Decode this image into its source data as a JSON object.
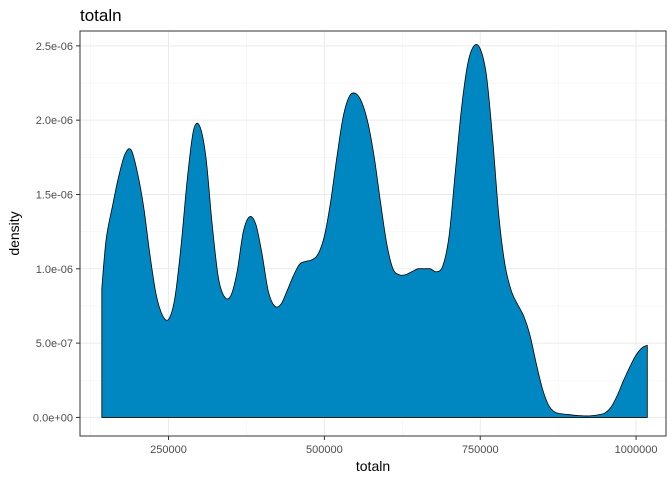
{
  "chart_data": {
    "type": "area",
    "title": "totaln",
    "xlabel": "totaln",
    "ylabel": "density",
    "xlim": [
      108000,
      1048000
    ],
    "ylim": [
      -1.25e-07,
      2.6e-06
    ],
    "x_ticks": [
      250000,
      500000,
      750000,
      1000000
    ],
    "x_tick_labels": [
      "250000",
      "500000",
      "750000",
      "1000000"
    ],
    "y_ticks": [
      0,
      5e-07,
      1e-06,
      1.5e-06,
      2e-06,
      2.5e-06
    ],
    "y_tick_labels": [
      "0.0e+00",
      "5.0e-07",
      "1.0e-06",
      "1.5e-06",
      "2.0e-06",
      "2.5e-06"
    ],
    "grid": true,
    "fill_color": "#0087C1",
    "x": [
      143000,
      150000,
      160000,
      170000,
      180000,
      190000,
      200000,
      210000,
      220000,
      230000,
      240000,
      250000,
      260000,
      270000,
      280000,
      290000,
      300000,
      310000,
      320000,
      330000,
      340000,
      350000,
      360000,
      370000,
      380000,
      390000,
      400000,
      410000,
      420000,
      430000,
      440000,
      450000,
      460000,
      470000,
      480000,
      490000,
      500000,
      510000,
      520000,
      530000,
      540000,
      550000,
      560000,
      570000,
      580000,
      590000,
      600000,
      610000,
      620000,
      630000,
      640000,
      650000,
      660000,
      670000,
      680000,
      690000,
      700000,
      710000,
      720000,
      730000,
      740000,
      750000,
      760000,
      770000,
      780000,
      790000,
      800000,
      810000,
      820000,
      830000,
      840000,
      850000,
      860000,
      870000,
      880000,
      890000,
      900000,
      910000,
      920000,
      930000,
      940000,
      950000,
      960000,
      970000,
      980000,
      990000,
      1000000,
      1010000,
      1018000
    ],
    "density": [
      8.7e-07,
      1.2e-06,
      1.42e-06,
      1.62e-06,
      1.77e-06,
      1.8e-06,
      1.65e-06,
      1.42e-06,
      1.1e-06,
      8.3e-07,
      6.9e-07,
      6.6e-07,
      8e-07,
      1.15e-06,
      1.6e-06,
      1.93e-06,
      1.96e-06,
      1.75e-06,
      1.3e-06,
      9.4e-07,
      8.1e-07,
      8.2e-07,
      9.8e-07,
      1.25e-06,
      1.35e-06,
      1.3e-06,
      1.1e-06,
      8.5e-07,
      7.5e-07,
      7.6e-07,
      8.5e-07,
      9.5e-07,
      1.03e-06,
      1.05e-06,
      1.06e-06,
      1.1e-06,
      1.22e-06,
      1.45e-06,
      1.75e-06,
      2.02e-06,
      2.16e-06,
      2.18e-06,
      2.12e-06,
      1.98e-06,
      1.75e-06,
      1.45e-06,
      1.17e-06,
      1e-06,
      9.6e-07,
      9.6e-07,
      9.8e-07,
      1e-06,
      1e-06,
      1e-06,
      9.8e-07,
      1.02e-06,
      1.22e-06,
      1.65e-06,
      2.08e-06,
      2.38e-06,
      2.5e-06,
      2.48e-06,
      2.3e-06,
      1.87e-06,
      1.35e-06,
      1.02e-06,
      8.5e-07,
      7.6e-07,
      6.8e-07,
      5.5e-07,
      3.6e-07,
      1.9e-07,
      8e-08,
      3.5e-08,
      2.5e-08,
      2e-08,
      1.5e-08,
      1.2e-08,
      1e-08,
      1.2e-08,
      1.8e-08,
      3e-08,
      7e-08,
      1.5e-07,
      2.5e-07,
      3.4e-07,
      4.2e-07,
      4.7e-07,
      4.85e-07
    ]
  }
}
